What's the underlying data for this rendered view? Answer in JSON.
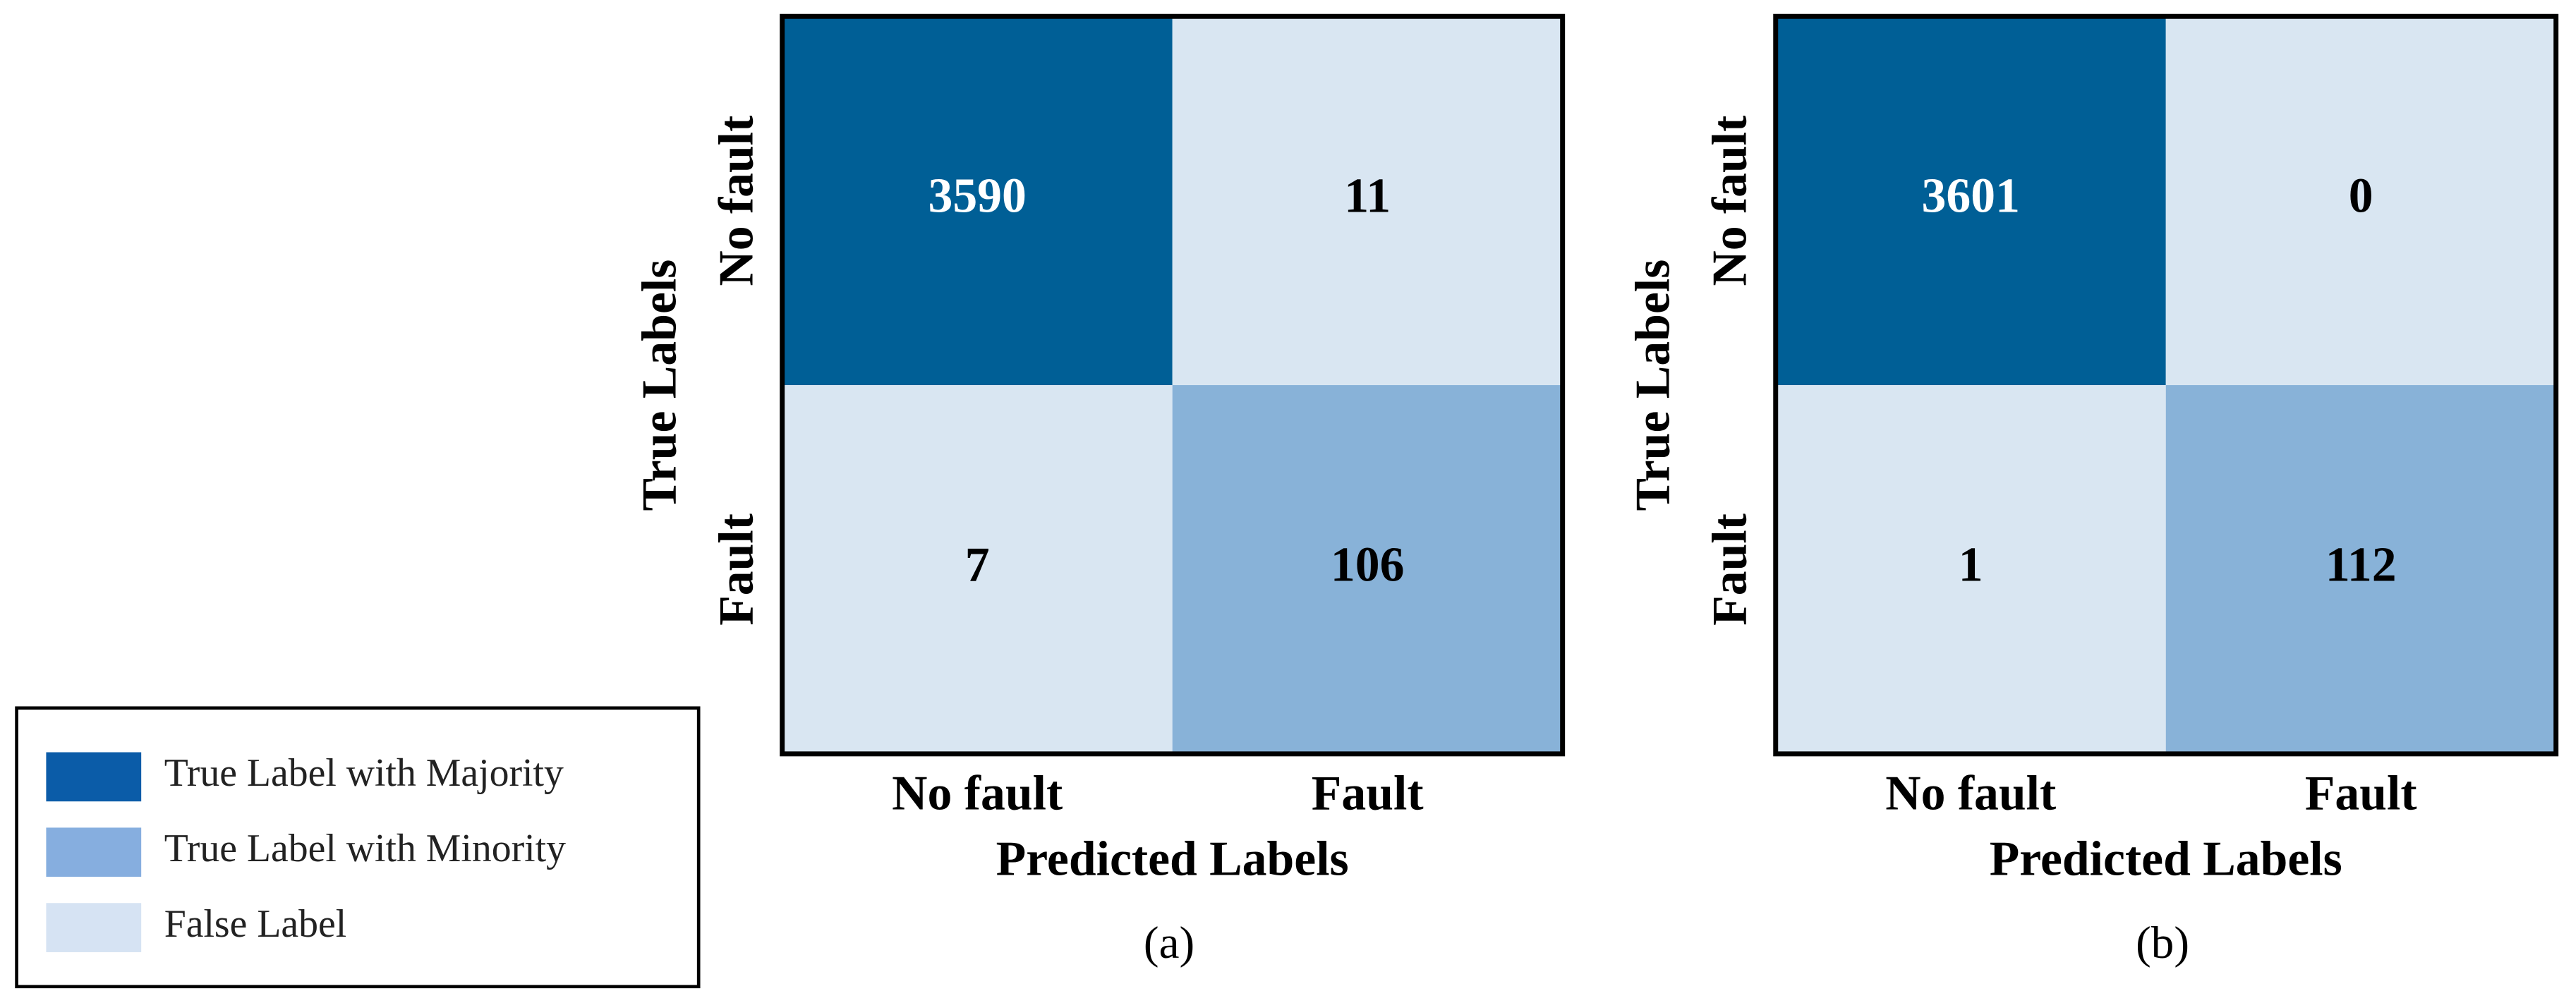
{
  "chart_data": [
    {
      "type": "heatmap",
      "x_label": "Predicted Labels",
      "y_label": "True Labels",
      "x_categories": [
        "No fault",
        "Fault"
      ],
      "y_categories": [
        "No fault",
        "Fault"
      ],
      "values": [
        [
          3590,
          11
        ],
        [
          7,
          106
        ]
      ],
      "colors": [
        [
          "#005f96",
          "#d9e6f2"
        ],
        [
          "#d9e6f2",
          "#88b2d8"
        ]
      ],
      "caption": "(a)"
    },
    {
      "type": "heatmap",
      "x_label": "Predicted Labels",
      "y_label": "True Labels",
      "x_categories": [
        "No fault",
        "Fault"
      ],
      "y_categories": [
        "No fault",
        "Fault"
      ],
      "values": [
        [
          3601,
          0
        ],
        [
          1,
          112
        ]
      ],
      "colors": [
        [
          "#005f96",
          "#d9e6f2"
        ],
        [
          "#d9e6f2",
          "#88b2d8"
        ]
      ],
      "caption": "(b)"
    }
  ],
  "legend": [
    {
      "name": "True Label with Majority",
      "color": "#0b5ca8"
    },
    {
      "name": "True Label with Minority",
      "color": "#86aedf"
    },
    {
      "name": "False Label",
      "color": "#d6e3f3"
    }
  ]
}
